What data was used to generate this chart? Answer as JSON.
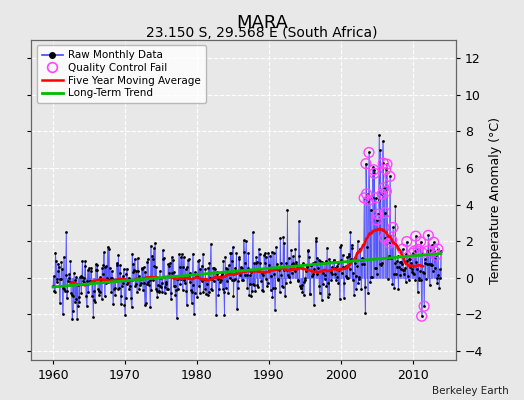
{
  "title": "MARA",
  "subtitle": "23.150 S, 29.568 E (South Africa)",
  "attribution": "Berkeley Earth",
  "ylabel_right": "Temperature Anomaly (°C)",
  "xlim": [
    1957,
    2016
  ],
  "ylim": [
    -4.5,
    13
  ],
  "yticks": [
    -4,
    -2,
    0,
    2,
    4,
    6,
    8,
    10,
    12
  ],
  "xticks": [
    1960,
    1970,
    1980,
    1990,
    2000,
    2010
  ],
  "line_color": "#4444ff",
  "marker_color": "#000000",
  "moving_avg_color": "#ff0000",
  "trend_color": "#00bb00",
  "qc_fail_color": "#ff44ff",
  "background_color": "#e8e8e8",
  "grid_color": "#ffffff",
  "title_fontsize": 13,
  "subtitle_fontsize": 10,
  "seed": 12345
}
